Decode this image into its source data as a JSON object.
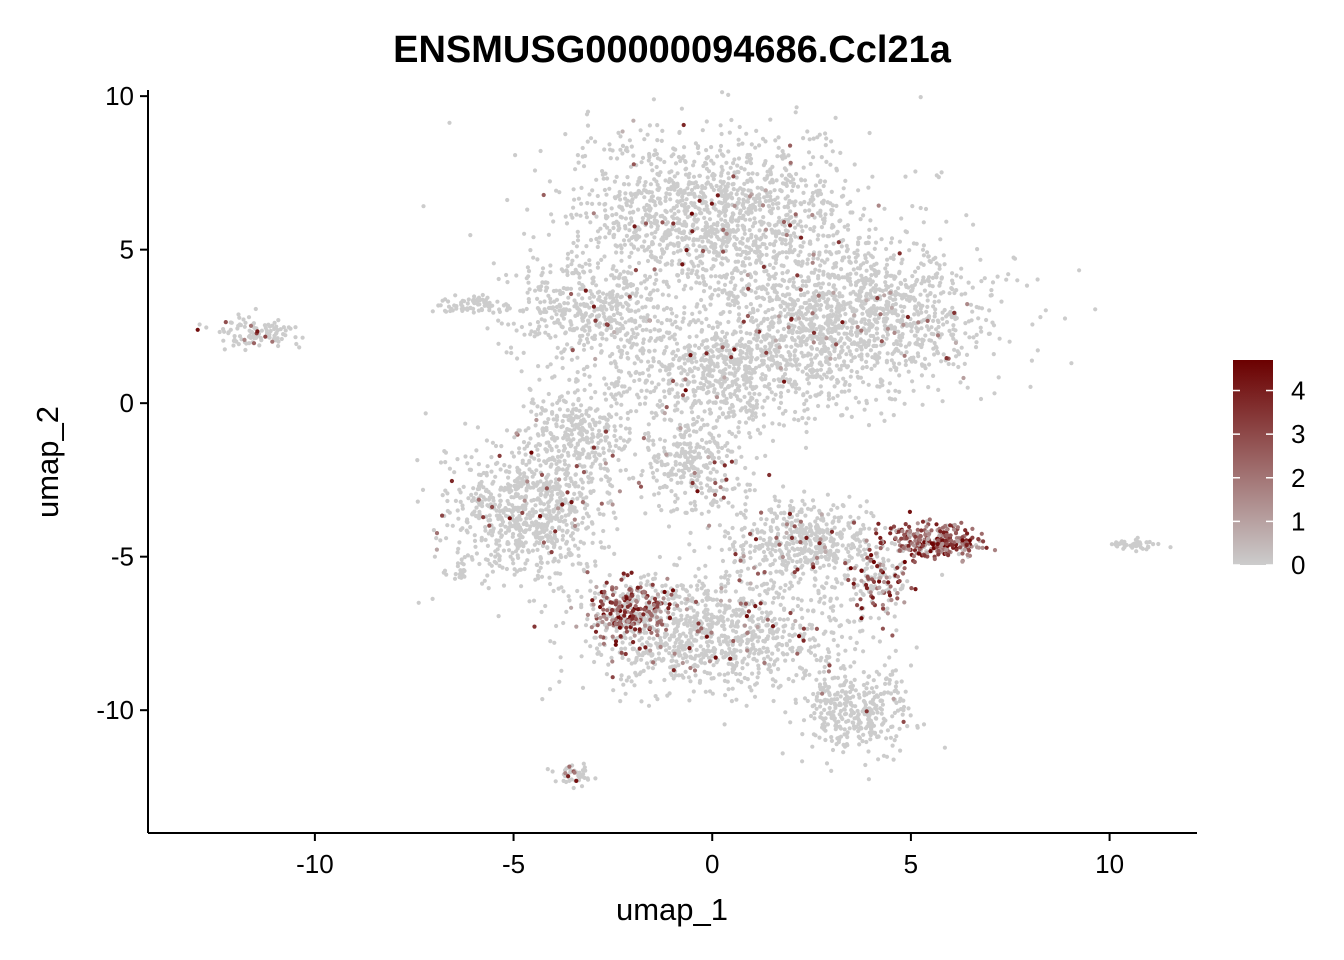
{
  "chart_data": {
    "type": "scatter",
    "title": "ENSMUSG00000094686.Ccl21a",
    "xlabel": "umap_1",
    "ylabel": "umap_2",
    "xlim": [
      -14.2,
      12.2
    ],
    "ylim": [
      -14.0,
      10.2
    ],
    "x_ticks": [
      -10,
      -5,
      0,
      5,
      10
    ],
    "x_tick_labels": [
      "-10",
      "-5",
      "0",
      "5",
      "10"
    ],
    "y_ticks": [
      10,
      5,
      0,
      -5,
      -10
    ],
    "y_tick_labels": [
      "10",
      "5",
      "0",
      "-5",
      "-10"
    ],
    "grid": false,
    "legend": {
      "placement": "right",
      "type": "colorbar",
      "range": [
        0,
        4.7
      ],
      "ticks": [
        0,
        1,
        2,
        3,
        4
      ],
      "tick_labels": [
        "0",
        "1",
        "2",
        "3",
        "4"
      ],
      "low_color": "#CCCCCC",
      "high_color": "#6B0000"
    },
    "point_color_low": "#CCCCCC",
    "point_color_high": "#6B0000",
    "clusters": [
      {
        "cx": 0.0,
        "cy": 6.2,
        "rx": 3.3,
        "ry": 2.3,
        "n": 1400,
        "expr": 0.03
      },
      {
        "cx": 3.5,
        "cy": 2.8,
        "rx": 3.2,
        "ry": 2.2,
        "n": 1400,
        "expr": 0.04
      },
      {
        "cx": -3.0,
        "cy": 3.0,
        "rx": 2.0,
        "ry": 1.4,
        "n": 450,
        "expr": 0.02
      },
      {
        "cx": 0.2,
        "cy": 1.0,
        "rx": 2.6,
        "ry": 1.7,
        "n": 700,
        "expr": 0.03
      },
      {
        "cx": -4.6,
        "cy": -3.5,
        "rx": 1.9,
        "ry": 2.1,
        "n": 800,
        "expr": 0.04
      },
      {
        "cx": -3.5,
        "cy": -1.0,
        "rx": 1.1,
        "ry": 1.5,
        "n": 300,
        "expr": 0.02
      },
      {
        "cx": -0.5,
        "cy": -2.0,
        "rx": 1.3,
        "ry": 1.4,
        "n": 300,
        "expr": 0.05
      },
      {
        "cx": 2.3,
        "cy": -4.5,
        "rx": 1.7,
        "ry": 1.2,
        "n": 500,
        "expr": 0.06
      },
      {
        "cx": 0.0,
        "cy": -7.5,
        "rx": 3.0,
        "ry": 1.8,
        "n": 1000,
        "expr": 0.06
      },
      {
        "cx": 3.6,
        "cy": -10.0,
        "rx": 1.2,
        "ry": 1.3,
        "n": 350,
        "expr": 0.02
      },
      {
        "cx": 5.6,
        "cy": -4.5,
        "rx": 1.1,
        "ry": 0.55,
        "n": 300,
        "expr": 0.9
      },
      {
        "cx": 4.1,
        "cy": -5.8,
        "rx": 0.8,
        "ry": 1.0,
        "n": 150,
        "expr": 0.45
      },
      {
        "cx": -2.0,
        "cy": -6.8,
        "rx": 1.0,
        "ry": 0.9,
        "n": 280,
        "expr": 0.7
      },
      {
        "cx": -11.5,
        "cy": 2.3,
        "rx": 0.9,
        "ry": 0.45,
        "n": 110,
        "expr": 0.08
      },
      {
        "cx": 10.6,
        "cy": -4.6,
        "rx": 0.6,
        "ry": 0.15,
        "n": 45,
        "expr": 0.0
      },
      {
        "cx": -6.0,
        "cy": 3.2,
        "rx": 0.9,
        "ry": 0.25,
        "n": 70,
        "expr": 0.0
      },
      {
        "cx": -3.5,
        "cy": -12.1,
        "rx": 0.4,
        "ry": 0.35,
        "n": 45,
        "expr": 0.12
      },
      {
        "cx": -6.3,
        "cy": -5.4,
        "rx": 0.1,
        "ry": 0.4,
        "n": 20,
        "expr": 0.0
      }
    ]
  }
}
